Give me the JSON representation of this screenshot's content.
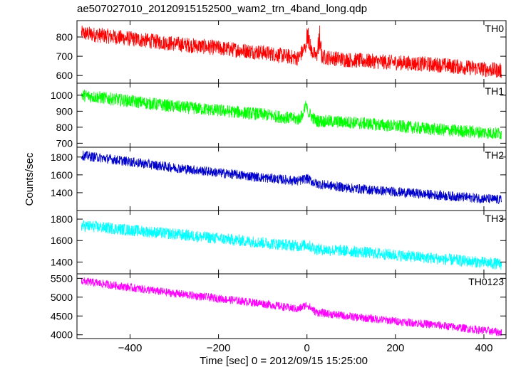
{
  "title": "ae507027010_20120915152500_wam2_trn_4band_long.qdp",
  "chart_data": {
    "type": "line",
    "title": "ae507027010_20120915152500_wam2_trn_4band_long.qdp",
    "xlabel": "Time [sec] 0 = 2012/09/15 15:25:00",
    "ylabel": "Counts/sec",
    "xlim": [
      -520,
      450
    ],
    "x_ticks": [
      -400,
      -200,
      0,
      200,
      400
    ],
    "x_tick_labels": [
      "−400",
      "−200",
      "0",
      "200",
      "400"
    ],
    "grid": false,
    "panels": [
      {
        "label": "TH0",
        "color": "#ff0000",
        "ylim": [
          560,
          885
        ],
        "y_ticks": [
          600,
          700,
          800
        ],
        "trend": {
          "x": [
            -510,
            -300,
            -100,
            -20,
            0,
            20,
            100,
            300,
            440
          ],
          "y": [
            820,
            765,
            720,
            690,
            760,
            700,
            680,
            655,
            625
          ]
        },
        "noise_amplitude": 40,
        "spikes": [
          {
            "x": 3,
            "y": 880
          },
          {
            "x": 28,
            "y": 870
          }
        ]
      },
      {
        "label": "TH1",
        "color": "#00ff00",
        "ylim": [
          675,
          1075
        ],
        "y_ticks": [
          700,
          800,
          900,
          1000
        ],
        "trend": {
          "x": [
            -510,
            -300,
            -100,
            -20,
            0,
            20,
            100,
            300,
            440
          ],
          "y": [
            1000,
            930,
            880,
            850,
            900,
            840,
            830,
            785,
            760
          ]
        },
        "noise_amplitude": 40,
        "spikes": [
          {
            "x": -4,
            "y": 970
          }
        ]
      },
      {
        "label": "TH2",
        "color": "#0000cc",
        "ylim": [
          1200,
          1910
        ],
        "y_ticks": [
          1400,
          1600,
          1800
        ],
        "trend": {
          "x": [
            -510,
            -300,
            -100,
            -20,
            0,
            20,
            100,
            300,
            440
          ],
          "y": [
            1820,
            1680,
            1570,
            1530,
            1560,
            1500,
            1450,
            1370,
            1320
          ]
        },
        "noise_amplitude": 55,
        "spikes": []
      },
      {
        "label": "TH3",
        "color": "#00ffff",
        "ylim": [
          1290,
          1880
        ],
        "y_ticks": [
          1400,
          1600,
          1800
        ],
        "trend": {
          "x": [
            -510,
            -300,
            -100,
            -20,
            0,
            20,
            100,
            300,
            440
          ],
          "y": [
            1740,
            1660,
            1580,
            1550,
            1560,
            1520,
            1500,
            1430,
            1380
          ]
        },
        "noise_amplitude": 55,
        "spikes": []
      },
      {
        "label": "TH0123",
        "color": "#ff00ff",
        "ylim": [
          3900,
          5620
        ],
        "y_ticks": [
          4000,
          4500,
          5000,
          5500
        ],
        "trend": {
          "x": [
            -510,
            -300,
            -100,
            -20,
            0,
            20,
            100,
            300,
            440
          ],
          "y": [
            5430,
            5100,
            4830,
            4680,
            4800,
            4600,
            4480,
            4250,
            4060
          ]
        },
        "noise_amplitude": 110,
        "spikes": []
      }
    ]
  }
}
